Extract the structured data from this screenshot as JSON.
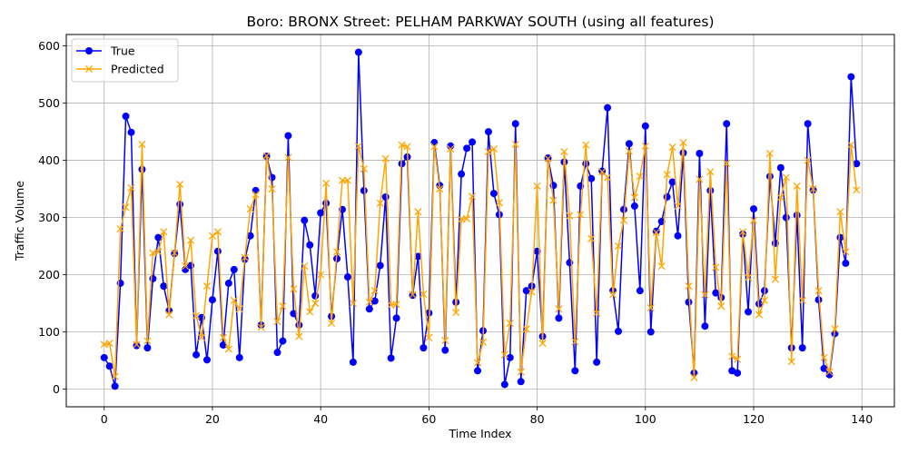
{
  "chart_data": {
    "type": "line",
    "title": "Boro: BRONX Street: PELHAM PARKWAY SOUTH (using all features)",
    "xlabel": "Time Index",
    "ylabel": "Traffic Volume",
    "xlim": [
      -7,
      146
    ],
    "ylim": [
      -31,
      620
    ],
    "xticks": [
      0,
      20,
      40,
      60,
      80,
      100,
      120,
      140
    ],
    "yticks": [
      0,
      100,
      200,
      300,
      400,
      500,
      600
    ],
    "grid": true,
    "legend": "upper-left",
    "series": [
      {
        "name": "True",
        "color": "#0000ff",
        "marker": "circle",
        "x": [
          0,
          1,
          2,
          3,
          4,
          5,
          6,
          7,
          8,
          9,
          10,
          11,
          12,
          13,
          14,
          15,
          16,
          17,
          18,
          19,
          20,
          21,
          22,
          23,
          24,
          25,
          26,
          27,
          28,
          29,
          30,
          31,
          32,
          33,
          34,
          35,
          36,
          37,
          38,
          39,
          40,
          41,
          42,
          43,
          44,
          45,
          46,
          47,
          48,
          49,
          50,
          51,
          52,
          53,
          54,
          55,
          56,
          57,
          58,
          59,
          60,
          61,
          62,
          63,
          64,
          65,
          66,
          67,
          68,
          69,
          70,
          71,
          72,
          73,
          74,
          75,
          76,
          77,
          78,
          79,
          80,
          81,
          82,
          83,
          84,
          85,
          86,
          87,
          88,
          89,
          90,
          91,
          92,
          93,
          94,
          95,
          96,
          97,
          98,
          99,
          100,
          101,
          102,
          103,
          104,
          105,
          106,
          107,
          108,
          109,
          110,
          111,
          112,
          113,
          114,
          115,
          116,
          117,
          118,
          119,
          120,
          121,
          122,
          123,
          124,
          125,
          126,
          127,
          128,
          129,
          130,
          131,
          132,
          133,
          134,
          135,
          136,
          137,
          138,
          139
        ],
        "values": [
          55,
          40,
          5,
          185,
          477,
          449,
          76,
          384,
          72,
          193,
          265,
          180,
          137,
          237,
          323,
          209,
          216,
          60,
          125,
          51,
          156,
          241,
          77,
          185,
          209,
          55,
          227,
          268,
          347,
          112,
          407,
          370,
          64,
          84,
          443,
          132,
          112,
          295,
          252,
          163,
          308,
          325,
          127,
          228,
          314,
          196,
          47,
          589,
          347,
          140,
          154,
          216,
          336,
          54,
          124,
          394,
          406,
          164,
          232,
          72,
          133,
          431,
          356,
          68,
          425,
          152,
          376,
          421,
          432,
          32,
          102,
          450,
          342,
          305,
          8,
          55,
          464,
          13,
          172,
          180,
          241,
          92,
          404,
          356,
          124,
          397,
          221,
          32,
          355,
          394,
          368,
          47,
          381,
          492,
          172,
          101,
          314,
          429,
          320,
          172,
          460,
          100,
          276,
          293,
          336,
          362,
          268,
          413,
          152,
          28,
          412,
          110,
          347,
          168,
          160,
          464,
          32,
          28,
          271,
          135,
          315,
          149,
          172,
          372,
          255,
          387,
          300,
          72,
          304,
          72,
          464,
          348,
          156,
          36,
          25,
          97,
          265,
          220,
          546,
          394
        ]
      },
      {
        "name": "Predicted",
        "color": "#ffa500",
        "marker": "x",
        "x": [
          0,
          1,
          2,
          3,
          4,
          5,
          6,
          7,
          8,
          9,
          10,
          11,
          12,
          13,
          14,
          15,
          16,
          17,
          18,
          19,
          20,
          21,
          22,
          23,
          24,
          25,
          26,
          27,
          28,
          29,
          30,
          31,
          32,
          33,
          34,
          35,
          36,
          37,
          38,
          39,
          40,
          41,
          42,
          43,
          44,
          45,
          46,
          47,
          48,
          49,
          50,
          51,
          52,
          53,
          54,
          55,
          56,
          57,
          58,
          59,
          60,
          61,
          62,
          63,
          64,
          65,
          66,
          67,
          68,
          69,
          70,
          71,
          72,
          73,
          74,
          75,
          76,
          77,
          78,
          79,
          80,
          81,
          82,
          83,
          84,
          85,
          86,
          87,
          88,
          89,
          90,
          91,
          92,
          93,
          94,
          95,
          96,
          97,
          98,
          99,
          100,
          101,
          102,
          103,
          104,
          105,
          106,
          107,
          108,
          109,
          110,
          111,
          112,
          113,
          114,
          115,
          116,
          117,
          118,
          119,
          120,
          121,
          122,
          123,
          124,
          125,
          126,
          127,
          128,
          129,
          130,
          131,
          132,
          133,
          134,
          135,
          136,
          137,
          138,
          139
        ],
        "values": [
          78,
          80,
          22,
          280,
          318,
          352,
          78,
          428,
          84,
          238,
          240,
          275,
          130,
          238,
          358,
          215,
          260,
          128,
          90,
          180,
          268,
          275,
          90,
          70,
          155,
          140,
          230,
          315,
          340,
          108,
          408,
          350,
          118,
          145,
          405,
          175,
          92,
          215,
          135,
          150,
          200,
          360,
          115,
          240,
          365,
          365,
          150,
          425,
          385,
          152,
          172,
          325,
          403,
          147,
          148,
          427,
          424,
          165,
          310,
          166,
          90,
          424,
          350,
          85,
          420,
          134,
          297,
          298,
          337,
          46,
          82,
          415,
          420,
          326,
          60,
          115,
          428,
          30,
          105,
          170,
          355,
          80,
          403,
          330,
          140,
          415,
          303,
          83,
          305,
          427,
          263,
          133,
          380,
          370,
          165,
          250,
          295,
          416,
          335,
          372,
          425,
          142,
          274,
          215,
          375,
          423,
          320,
          431,
          180,
          20,
          367,
          165,
          380,
          213,
          145,
          395,
          57,
          52,
          275,
          195,
          295,
          130,
          155,
          412,
          192,
          335,
          370,
          48,
          355,
          155,
          400,
          350,
          172,
          55,
          30,
          105,
          310,
          240,
          427,
          348
        ]
      }
    ],
    "legend_entries": [
      "True",
      "Predicted"
    ]
  }
}
